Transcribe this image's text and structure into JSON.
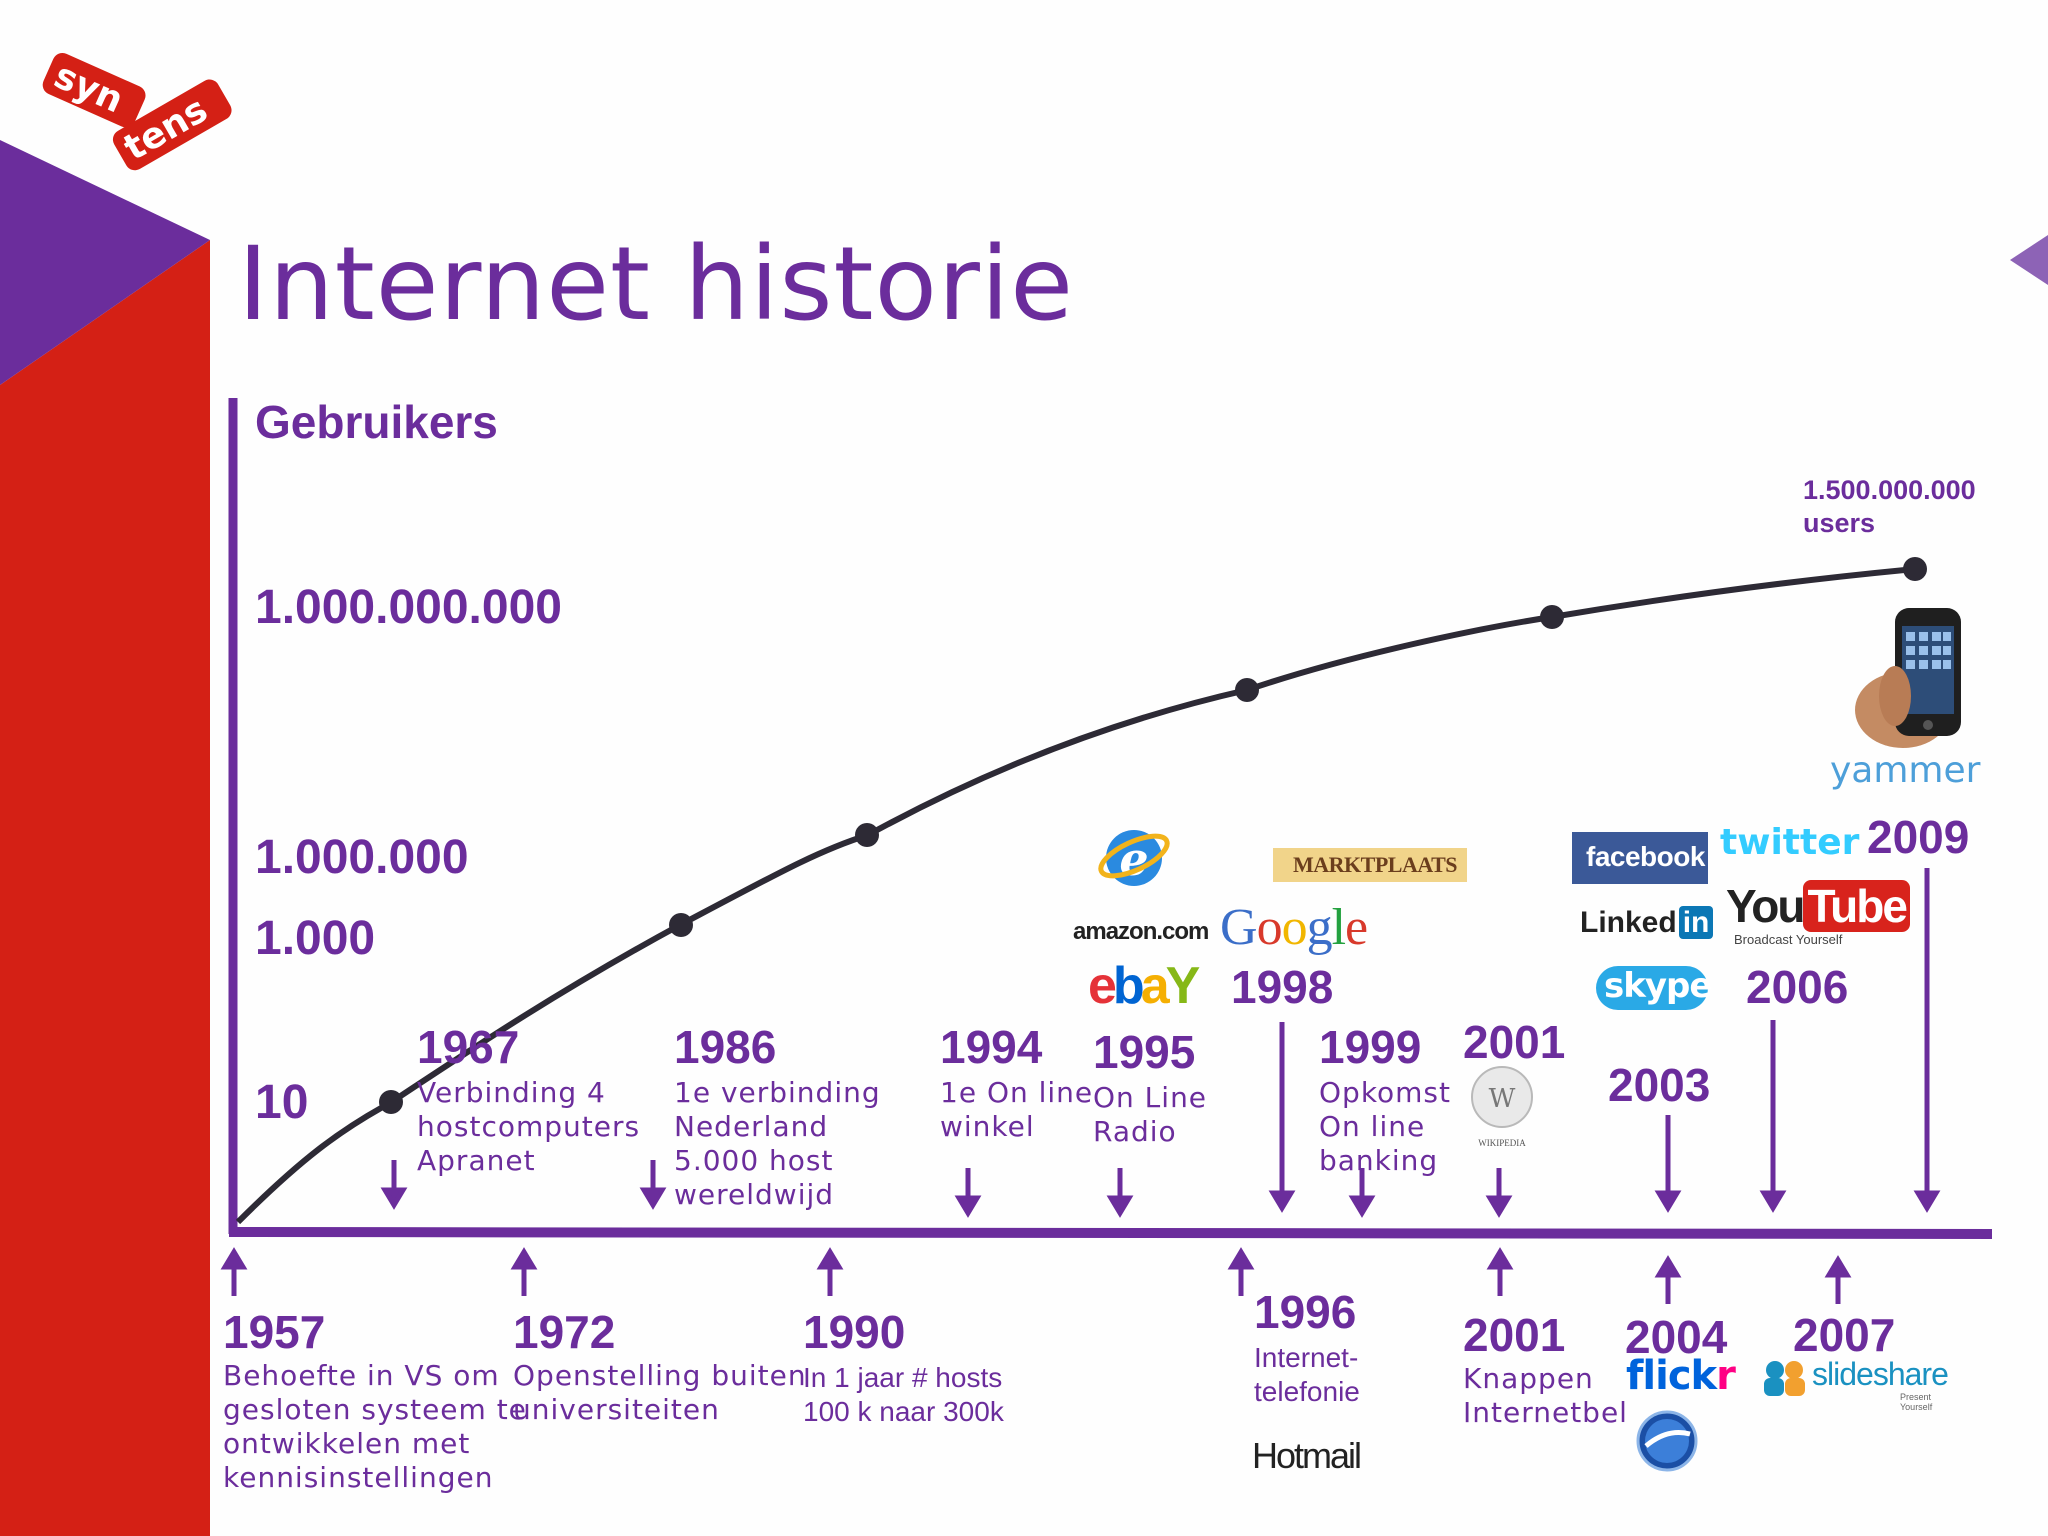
{
  "slide": {
    "title": "Internet historie",
    "brand_logo": "syn tens",
    "colors": {
      "purple": "#6b2d9c",
      "red": "#d42015",
      "curve": "#2d2a35"
    }
  },
  "axis": {
    "y_title": "Gebruikers",
    "y_labels": [
      "1.000.000.000",
      "1.000.000",
      "1.000",
      "10"
    ],
    "peak_users_line1": "1.500.000.000",
    "peak_users_line2": "users"
  },
  "events_above": [
    {
      "year": "1967",
      "lines": [
        "Verbinding 4",
        "hostcomputers",
        "Apranet"
      ]
    },
    {
      "year": "1986",
      "lines": [
        "1e verbinding",
        "Nederland",
        "5.000 host",
        "wereldwijd"
      ]
    },
    {
      "year": "1994",
      "lines": [
        "1e On line",
        "winkel"
      ]
    },
    {
      "year": "1995",
      "lines": [
        "On Line",
        "Radio"
      ]
    },
    {
      "year": "1998",
      "lines": []
    },
    {
      "year": "1999",
      "lines": [
        "Opkomst",
        "On line",
        "banking"
      ]
    },
    {
      "year": "2001",
      "lines": []
    },
    {
      "year": "2003",
      "lines": []
    },
    {
      "year": "2006",
      "lines": []
    },
    {
      "year": "2009",
      "lines": []
    }
  ],
  "events_below": [
    {
      "year": "1957",
      "lines": [
        "Behoefte in VS om",
        "gesloten systeem te",
        "ontwikkelen met",
        "kennisinstellingen"
      ]
    },
    {
      "year": "1972",
      "lines": [
        "Openstelling buiten",
        "universiteiten"
      ]
    },
    {
      "year": "1990",
      "lines": [
        "In 1 jaar # hosts",
        "100 k naar 300k"
      ]
    },
    {
      "year": "1996",
      "lines": [
        "Internet-",
        "telefonie"
      ]
    },
    {
      "year": "2001",
      "lines": [
        "Knappen",
        "Internetbel"
      ]
    },
    {
      "year": "2004",
      "lines": []
    },
    {
      "year": "2007",
      "lines": []
    }
  ],
  "logos": {
    "marktplaats": "MARKTPLAATS",
    "amazon": "amazon.com",
    "ebay": [
      "e",
      "b",
      "a",
      "Y"
    ],
    "google": [
      "G",
      "o",
      "o",
      "g",
      "l",
      "e"
    ],
    "facebook": "facebook",
    "twitter": "twitter",
    "linkedin_a": "Linked",
    "linkedin_b": "in",
    "youtube_a": "You",
    "youtube_b": "Tube",
    "youtube_tag": "Broadcast Yourself",
    "skype": "skype",
    "yammer": "yammer",
    "wikipedia": "WIKIPEDIA",
    "hotmail": "Hotmail",
    "flickr_a": "flick",
    "flickr_b": "r",
    "slideshare": "slideshare",
    "slideshare_tag": "Present Yourself"
  }
}
